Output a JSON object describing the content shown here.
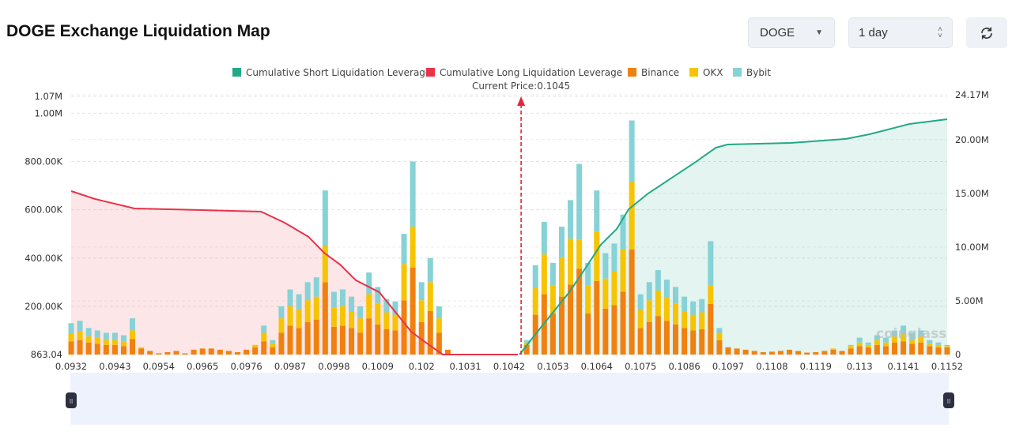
{
  "header": {
    "title": "DOGE Exchange Liquidation Map"
  },
  "controls": {
    "symbol": "DOGE",
    "period": "1 day",
    "refresh_icon": "refresh-icon"
  },
  "chart_data": {
    "type": "bar",
    "legend_position": "top",
    "legend": [
      {
        "name": "Cumulative Short Liquidation Leverage",
        "color": "#23a887"
      },
      {
        "name": "Cumulative Long Liquidation Leverage",
        "color": "#e8334a"
      },
      {
        "name": "Binance",
        "color": "#f0810f"
      },
      {
        "name": "OKX",
        "color": "#f6c401"
      },
      {
        "name": "Bybit",
        "color": "#86d2d6"
      }
    ],
    "current_price_label": "Current Price:0.1045",
    "current_price": 0.1045,
    "x_ticks": [
      "0.0932",
      "0.0943",
      "0.0954",
      "0.0965",
      "0.0976",
      "0.0987",
      "0.0998",
      "0.1009",
      "0.102",
      "0.1031",
      "0.1042",
      "0.1053",
      "0.1064",
      "0.1075",
      "0.1086",
      "0.1097",
      "0.1108",
      "0.1119",
      "0.113",
      "0.1141",
      "0.1152"
    ],
    "xlim": [
      0.0932,
      0.1152
    ],
    "y_left_ticks": [
      {
        "v": 0,
        "label": "863.04"
      },
      {
        "v": 200000,
        "label": "200.00K"
      },
      {
        "v": 400000,
        "label": "400.00K"
      },
      {
        "v": 600000,
        "label": "600.00K"
      },
      {
        "v": 800000,
        "label": "800.00K"
      },
      {
        "v": 1000000,
        "label": "1.00M"
      },
      {
        "v": 1070000,
        "label": "1.07M"
      }
    ],
    "y_left_lim": [
      0,
      1070000
    ],
    "y_right_ticks": [
      {
        "v": 0,
        "label": "0"
      },
      {
        "v": 5,
        "label": "5.00M"
      },
      {
        "v": 10,
        "label": "10.00M"
      },
      {
        "v": 15,
        "label": "15.00M"
      },
      {
        "v": 20,
        "label": "20.00M"
      },
      {
        "v": 24.17,
        "label": "24.17M"
      }
    ],
    "y_right_lim_millions": [
      0,
      24.17
    ],
    "grid": true,
    "bar_start_price": 0.0932,
    "bar_step": 0.00022,
    "bar_units": "thousands",
    "bars_total": [
      130,
      140,
      110,
      100,
      90,
      90,
      80,
      150,
      30,
      15,
      5,
      10,
      15,
      5,
      20,
      25,
      25,
      20,
      15,
      10,
      20,
      40,
      120,
      60,
      200,
      270,
      250,
      300,
      320,
      680,
      260,
      270,
      240,
      200,
      340,
      280,
      230,
      220,
      500,
      800,
      300,
      400,
      200,
      20,
      0,
      0,
      0,
      0,
      0,
      0,
      0,
      0,
      60,
      370,
      550,
      380,
      530,
      640,
      790,
      380,
      680,
      420,
      460,
      580,
      970,
      250,
      300,
      350,
      310,
      280,
      240,
      220,
      230,
      470,
      110,
      30,
      25,
      20,
      15,
      10,
      12,
      15,
      20,
      15,
      8,
      10,
      15,
      25,
      15,
      40,
      70,
      50,
      80,
      70,
      100,
      120,
      90,
      100,
      60,
      50,
      40
    ],
    "bars_binance": [
      55,
      60,
      50,
      45,
      40,
      40,
      35,
      65,
      25,
      15,
      5,
      10,
      15,
      5,
      20,
      25,
      25,
      20,
      15,
      10,
      20,
      30,
      55,
      30,
      90,
      120,
      110,
      135,
      145,
      300,
      115,
      120,
      110,
      90,
      150,
      125,
      105,
      100,
      225,
      360,
      135,
      180,
      90,
      20,
      0,
      0,
      0,
      0,
      0,
      0,
      0,
      0,
      40,
      165,
      250,
      170,
      240,
      290,
      355,
      170,
      305,
      190,
      205,
      260,
      435,
      110,
      135,
      160,
      140,
      125,
      110,
      100,
      105,
      210,
      60,
      30,
      25,
      20,
      15,
      10,
      12,
      15,
      20,
      15,
      8,
      10,
      15,
      20,
      15,
      25,
      35,
      30,
      40,
      35,
      50,
      55,
      45,
      50,
      35,
      30,
      30
    ],
    "bars_okx": [
      30,
      35,
      25,
      25,
      20,
      20,
      20,
      35,
      5,
      0,
      0,
      0,
      0,
      0,
      0,
      0,
      0,
      0,
      0,
      0,
      0,
      10,
      35,
      15,
      60,
      80,
      75,
      90,
      95,
      150,
      80,
      80,
      70,
      60,
      100,
      85,
      70,
      65,
      150,
      170,
      90,
      120,
      60,
      0,
      0,
      0,
      0,
      0,
      0,
      0,
      0,
      0,
      10,
      110,
      165,
      115,
      160,
      190,
      120,
      115,
      205,
      125,
      140,
      175,
      280,
      75,
      90,
      105,
      95,
      85,
      70,
      65,
      70,
      75,
      30,
      0,
      0,
      0,
      0,
      0,
      0,
      0,
      0,
      0,
      0,
      0,
      0,
      5,
      0,
      10,
      15,
      10,
      20,
      15,
      25,
      30,
      20,
      25,
      10,
      10,
      5
    ],
    "long_cumulative_millions": [
      [
        0.0932,
        15.21
      ],
      [
        0.0938,
        14.47
      ],
      [
        0.09479,
        13.59
      ],
      [
        0.09638,
        13.45
      ],
      [
        0.09797,
        13.3
      ],
      [
        0.09856,
        12.27
      ],
      [
        0.09916,
        10.95
      ],
      [
        0.09955,
        9.48
      ],
      [
        0.09995,
        8.38
      ],
      [
        0.10035,
        6.91
      ],
      [
        0.10094,
        5.8
      ],
      [
        0.10134,
        3.97
      ],
      [
        0.10174,
        2.13
      ],
      [
        0.10214,
        1.03
      ],
      [
        0.10253,
        0
      ],
      [
        0.10442,
        0
      ]
    ],
    "short_cumulative_millions": [
      [
        0.10446,
        0
      ],
      [
        0.10491,
        2.13
      ],
      [
        0.10531,
        3.97
      ],
      [
        0.10571,
        5.8
      ],
      [
        0.10611,
        8.01
      ],
      [
        0.1065,
        10.21
      ],
      [
        0.1069,
        11.68
      ],
      [
        0.1072,
        13.52
      ],
      [
        0.10769,
        14.99
      ],
      [
        0.10829,
        16.46
      ],
      [
        0.10889,
        17.93
      ],
      [
        0.10939,
        19.25
      ],
      [
        0.10968,
        19.54
      ],
      [
        0.11127,
        19.69
      ],
      [
        0.11266,
        20.06
      ],
      [
        0.11325,
        20.5
      ],
      [
        0.11425,
        21.45
      ],
      [
        0.1152,
        21.89
      ]
    ],
    "watermark": "coinglass"
  }
}
